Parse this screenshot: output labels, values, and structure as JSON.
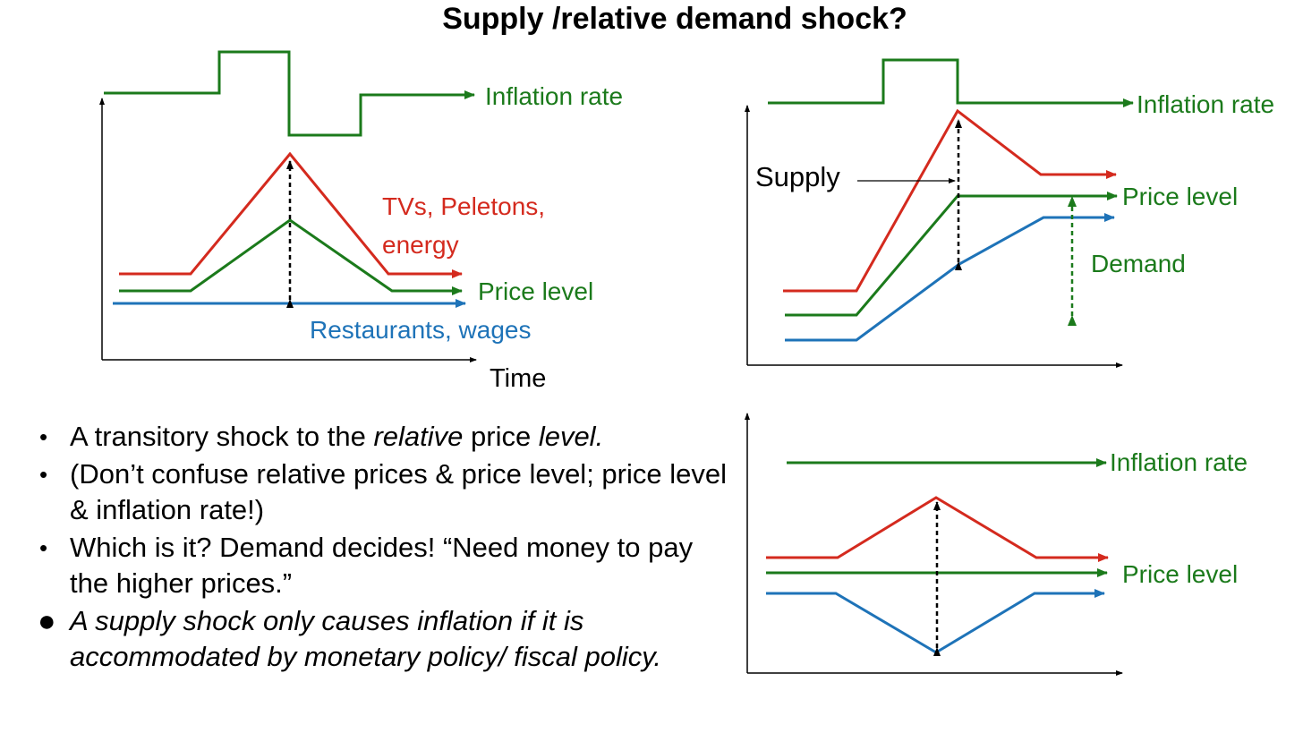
{
  "title": "Supply /relative demand shock?",
  "colors": {
    "green": "#1b7a1b",
    "red": "#d42a1e",
    "blue": "#1e73b8",
    "black": "#000000"
  },
  "diagram": {
    "left_panel": {
      "inflation_label": "Inflation rate",
      "red_label_line1": "TVs, Peletons,",
      "red_label_line2": "energy",
      "price_level_label": "Price level",
      "blue_label": "Restaurants, wages",
      "x_axis_label": "Time"
    },
    "top_right_panel": {
      "inflation_label": "Inflation rate",
      "supply_label": "Supply",
      "price_level_label": "Price level",
      "demand_label": "Demand"
    },
    "bottom_right_panel": {
      "inflation_label": "Inflation rate",
      "price_level_label": "Price level"
    }
  },
  "bullets": [
    {
      "parts": [
        {
          "text": "A transitory shock to the ",
          "italic": false
        },
        {
          "text": "relative",
          "italic": true
        },
        {
          "text": " price ",
          "italic": false
        },
        {
          "text": "level.",
          "italic": true
        }
      ]
    },
    {
      "parts": [
        {
          "text": "(Don’t confuse relative prices & price level; price level & inflation rate!)",
          "italic": false
        }
      ]
    },
    {
      "parts": [
        {
          "text": "Which is it? Demand decides! “Need money to pay the higher prices.”",
          "italic": false
        }
      ]
    },
    {
      "parts": [
        {
          "text": "A supply shock only causes inflation if it is accommodated by monetary policy/ fiscal policy.",
          "italic": true
        }
      ]
    }
  ]
}
